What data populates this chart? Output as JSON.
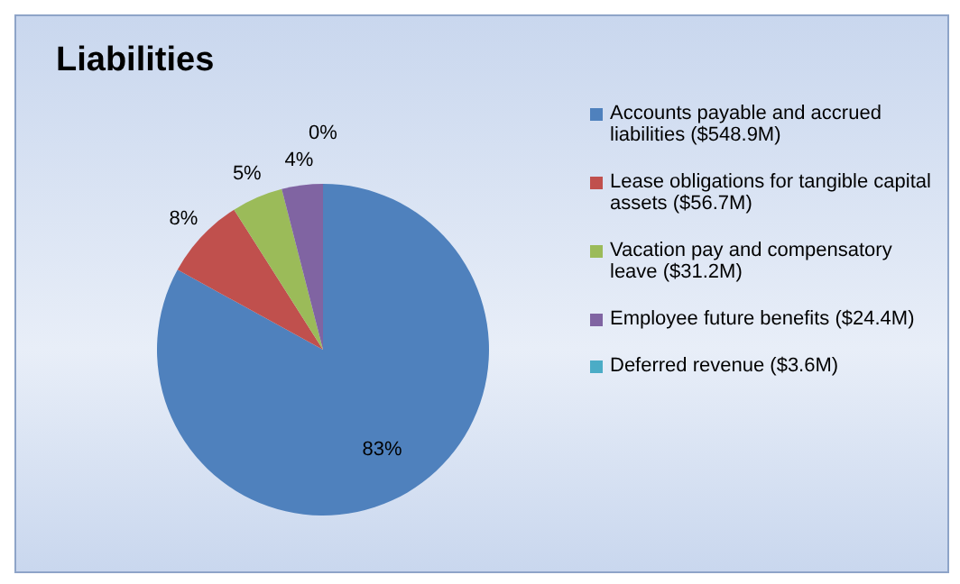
{
  "chart_data": {
    "type": "pie",
    "title": "Liabilities",
    "categories": [
      "Accounts payable and accrued liabilities ($548.9M)",
      "Lease obligations for tangible capital assets ($56.7M)",
      "Vacation pay and compensatory leave ($31.2M)",
      "Employee future benefits ($24.4M)",
      "Deferred revenue ($3.6M)"
    ],
    "values": [
      83,
      8,
      5,
      4,
      0
    ],
    "value_labels": [
      "83%",
      "8%",
      "5%",
      "4%",
      "0%"
    ],
    "colors": [
      "#4f81bd",
      "#c0504d",
      "#9bbb59",
      "#8064a2",
      "#4bacc6"
    ],
    "legend": "right"
  }
}
